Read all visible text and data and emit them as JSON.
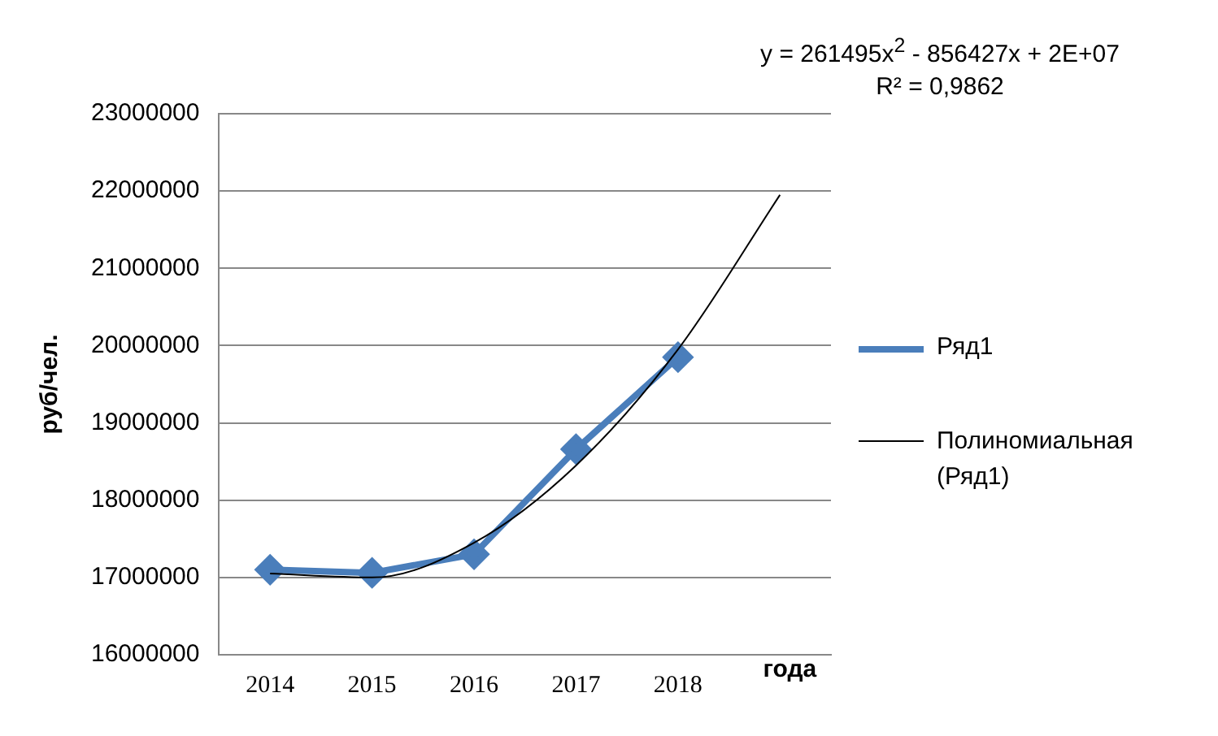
{
  "chart_data": {
    "type": "line",
    "xlabel": "года",
    "ylabel": "руб/чел.",
    "categories": [
      "2014",
      "2015",
      "2016",
      "2017",
      "2018",
      null
    ],
    "series": [
      {
        "name": "Ряд1",
        "color": "#4a7ebb",
        "values": [
          17100000,
          17060000,
          17300000,
          18660000,
          19850000,
          null
        ],
        "marker": "diamond"
      },
      {
        "name": "Полиномиальная (Ряд1)",
        "color": "#000000",
        "values": [
          17050000,
          17000000,
          17450000,
          18450000,
          19950000,
          21950000
        ],
        "marker": "none"
      }
    ],
    "ylim": [
      16000000,
      23000000
    ],
    "yticks": [
      16000000,
      17000000,
      18000000,
      19000000,
      20000000,
      21000000,
      22000000,
      23000000
    ],
    "grid": "y",
    "legend": "right",
    "annotations": [
      "y = 261495x$^{2}$ - 856427x + 2E+07",
      "R² = 0,9862"
    ]
  }
}
